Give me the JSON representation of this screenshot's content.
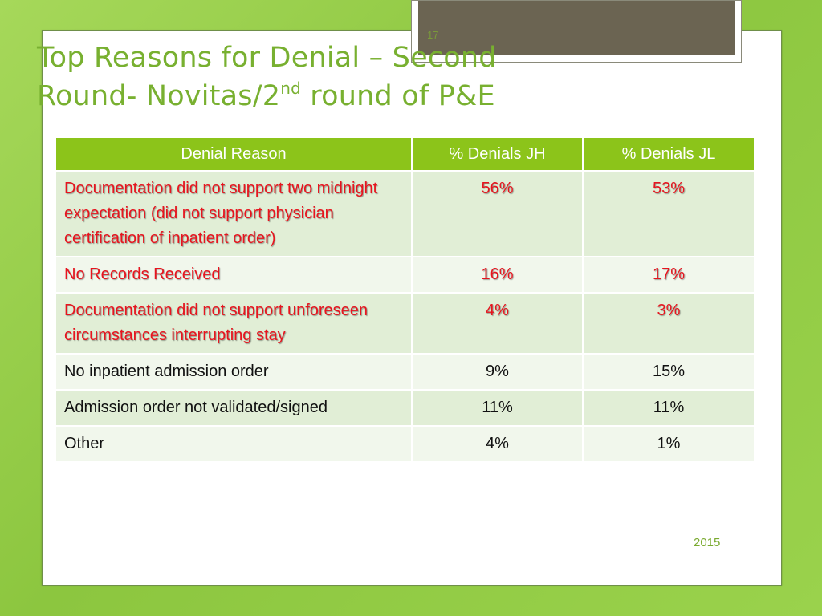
{
  "slide_number": "17",
  "title": {
    "line1": "Top Reasons for Denial – Second",
    "line2_before": "Round- Novitas/2",
    "line2_sup": "nd",
    "line2_after": " round of P&E"
  },
  "table": {
    "headers": [
      "Denial Reason",
      "% Denials JH",
      "% Denials JL"
    ],
    "rows": [
      {
        "reason": "Documentation did not support  two midnight expectation (did not support physician certification of inpatient order)",
        "jh": "56%",
        "jl": "53%"
      },
      {
        "reason": "No Records Received",
        "jh": "16%",
        "jl": "17%"
      },
      {
        "reason": "Documentation did not support unforeseen circumstances interrupting stay",
        "jh": "4%",
        "jl": "3%"
      },
      {
        "reason": "No inpatient admission order",
        "jh": "9%",
        "jl": "15%"
      },
      {
        "reason": "Admission order not validated/signed",
        "jh": "11%",
        "jl": "11%"
      },
      {
        "reason": "Other",
        "jh": "4%",
        "jl": "1%"
      }
    ]
  },
  "footer_year": "2015",
  "colors": {
    "title": "#78b030",
    "header_bg": "#8cc41a",
    "highlight_text": "#e8141e",
    "row_odd": "#e1eed6",
    "row_even": "#f1f7ec"
  }
}
